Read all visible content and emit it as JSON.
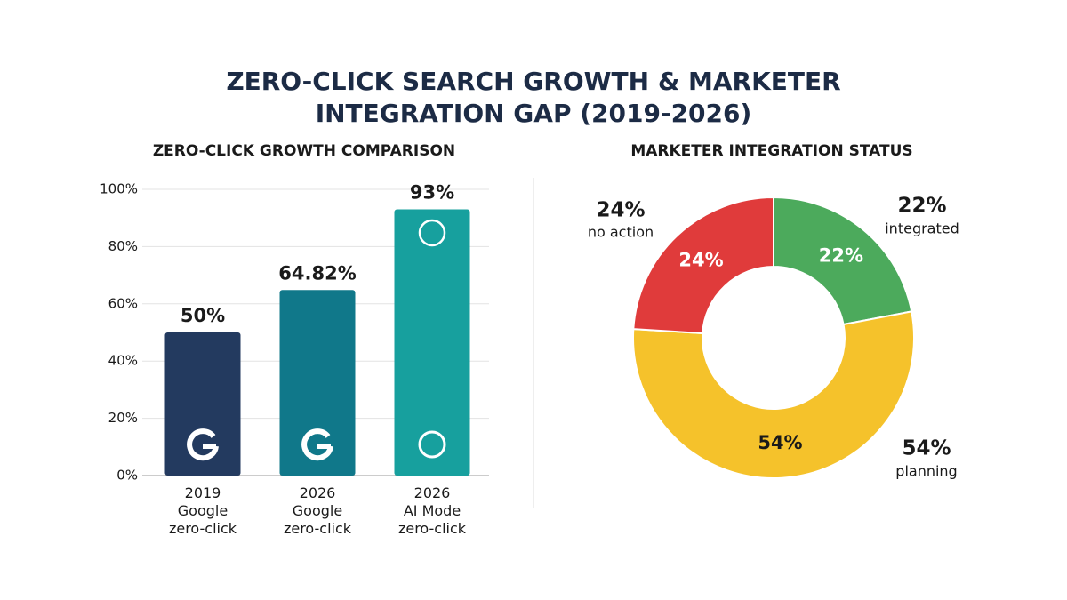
{
  "title": "ZERO-CLICK SEARCH GROWTH & MARKETER INTEGRATION GAP (2019-2026)",
  "chart_data": [
    {
      "type": "bar",
      "title": "ZERO-CLICK GROWTH COMPARISON",
      "categories": [
        "2019\nGoogle\nzero-click",
        "2026\nGoogle\nzero-click",
        "2026\nAI Mode\nzero-click"
      ],
      "values": [
        50,
        64.82,
        93
      ],
      "value_labels": [
        "50%",
        "64.82%",
        "93%"
      ],
      "colors": [
        "#233a5f",
        "#10788a",
        "#17a09e"
      ],
      "ylim": [
        0,
        100
      ],
      "yticks": [
        {
          "value": 0,
          "label": "0%"
        },
        {
          "value": 20,
          "label": "20%"
        },
        {
          "value": 40,
          "label": "40%"
        },
        {
          "value": 60,
          "label": "60%"
        },
        {
          "value": 80,
          "label": "80%"
        },
        {
          "value": 100,
          "label": "100%"
        }
      ],
      "grid": true
    },
    {
      "type": "donut",
      "title": "MARKETER INTEGRATION STATUS",
      "categories": [
        "integrated",
        "planning",
        "no action"
      ],
      "values": [
        22,
        54,
        24
      ],
      "value_labels": [
        "22%",
        "54%",
        "24%"
      ],
      "colors": [
        "#4caa5c",
        "#f5c22b",
        "#e03b3b"
      ]
    }
  ]
}
